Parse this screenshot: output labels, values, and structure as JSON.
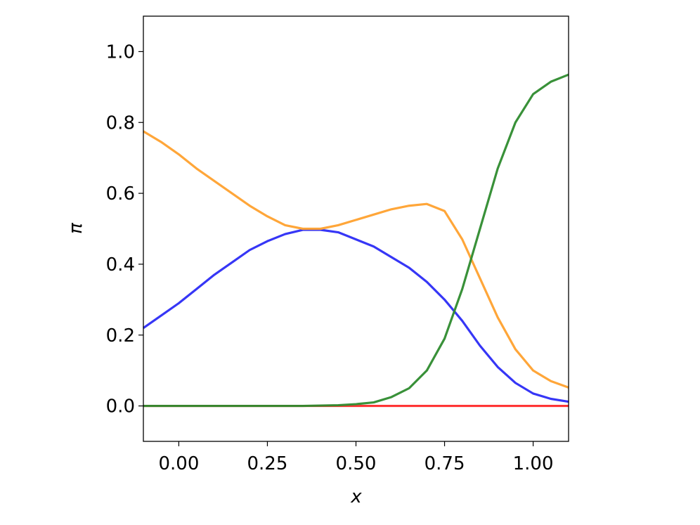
{
  "chart_data": {
    "type": "line",
    "xlabel": "x",
    "ylabel": "π",
    "x": [
      -0.1,
      -0.05,
      0,
      0.05,
      0.1,
      0.15,
      0.2,
      0.25,
      0.3,
      0.35,
      0.4,
      0.45,
      0.5,
      0.55,
      0.6,
      0.65,
      0.7,
      0.75,
      0.8,
      0.85,
      0.9,
      0.95,
      1.0,
      1.05,
      1.1
    ],
    "series": [
      {
        "color": "#ff2a2a",
        "values": [
          0,
          0,
          0,
          0,
          0,
          0,
          0,
          0,
          0,
          0,
          0,
          0,
          0,
          0,
          0,
          0,
          0,
          0,
          0,
          0,
          0,
          0,
          0,
          0,
          0
        ]
      },
      {
        "color": "#2b2bf5",
        "values": [
          0.22,
          0.255,
          0.29,
          0.33,
          0.37,
          0.405,
          0.44,
          0.465,
          0.485,
          0.497,
          0.497,
          0.49,
          0.47,
          0.45,
          0.42,
          0.39,
          0.35,
          0.3,
          0.24,
          0.17,
          0.11,
          0.065,
          0.035,
          0.02,
          0.012
        ]
      },
      {
        "color": "#ffa12e",
        "values": [
          0.775,
          0.745,
          0.71,
          0.67,
          0.635,
          0.6,
          0.565,
          0.535,
          0.51,
          0.5,
          0.5,
          0.51,
          0.525,
          0.54,
          0.555,
          0.565,
          0.57,
          0.55,
          0.47,
          0.36,
          0.25,
          0.16,
          0.1,
          0.07,
          0.052
        ]
      },
      {
        "color": "#2e8b2e",
        "values": [
          0,
          0,
          0,
          0,
          0,
          0,
          0,
          0,
          0,
          0,
          0.001,
          0.002,
          0.005,
          0.01,
          0.025,
          0.05,
          0.1,
          0.19,
          0.33,
          0.5,
          0.67,
          0.8,
          0.88,
          0.915,
          0.935
        ]
      }
    ],
    "xlim": [
      -0.1,
      1.1
    ],
    "xticks": [
      {
        "value": 0,
        "label": "0.00"
      },
      {
        "value": 0.25,
        "label": "0.25"
      },
      {
        "value": 0.5,
        "label": "0.50"
      },
      {
        "value": 0.75,
        "label": "0.75"
      },
      {
        "value": 1,
        "label": "1.00"
      }
    ],
    "ylim": [
      -0.1,
      1.1
    ],
    "yticks": [
      {
        "value": 0,
        "label": "0.0"
      },
      {
        "value": 0.2,
        "label": "0.2"
      },
      {
        "value": 0.4,
        "label": "0.4"
      },
      {
        "value": 0.6,
        "label": "0.6"
      },
      {
        "value": 0.8,
        "label": "0.8"
      },
      {
        "value": 1,
        "label": "1.0"
      }
    ],
    "grid": false
  }
}
